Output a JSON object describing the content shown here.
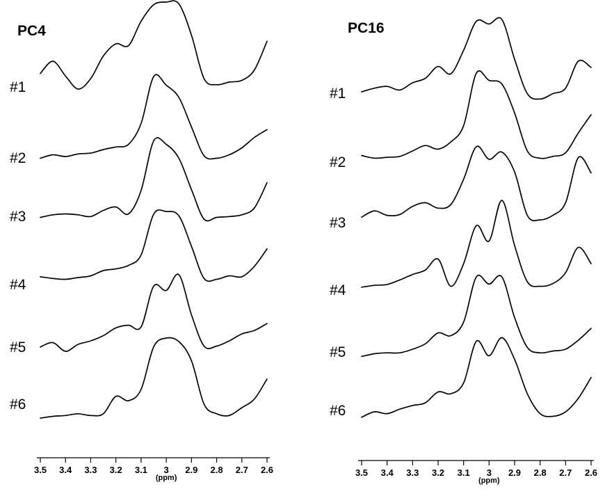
{
  "chart_data": [
    {
      "type": "line",
      "title": "PC4",
      "xlabel": "(ppm)",
      "x_reversed": true,
      "xlim": [
        3.5,
        2.6
      ],
      "xticks": [
        3.5,
        3.4,
        3.3,
        3.2,
        3.1,
        3.0,
        2.9,
        2.8,
        2.7,
        2.6
      ],
      "xtick_labels": [
        "3.5",
        "3.4",
        "3.3",
        "3.2",
        "3.1",
        "3",
        "2.9",
        "2.8",
        "2.7",
        "2.6"
      ],
      "x": [
        3.5,
        3.45,
        3.4,
        3.35,
        3.3,
        3.25,
        3.2,
        3.15,
        3.1,
        3.05,
        3.0,
        2.95,
        2.9,
        2.85,
        2.8,
        2.75,
        2.7,
        2.65,
        2.6
      ],
      "series": [
        {
          "name": "#1",
          "values": [
            0.18,
            0.32,
            0.15,
            0.0,
            0.12,
            0.38,
            0.52,
            0.5,
            0.78,
            0.97,
            1.0,
            0.98,
            0.62,
            0.12,
            0.05,
            0.08,
            0.1,
            0.22,
            0.55
          ]
        },
        {
          "name": "#2",
          "values": [
            0.02,
            0.06,
            0.04,
            0.07,
            0.08,
            0.12,
            0.15,
            0.18,
            0.42,
            0.96,
            0.86,
            0.72,
            0.38,
            0.05,
            0.02,
            0.06,
            0.14,
            0.26,
            0.35
          ]
        },
        {
          "name": "#3",
          "values": [
            0.02,
            0.05,
            0.06,
            0.05,
            0.03,
            0.1,
            0.14,
            0.06,
            0.33,
            0.9,
            0.86,
            0.7,
            0.34,
            0.0,
            0.02,
            0.03,
            0.05,
            0.13,
            0.42
          ]
        },
        {
          "name": "#4",
          "values": [
            0.05,
            0.03,
            0.02,
            0.04,
            0.06,
            0.12,
            0.14,
            0.18,
            0.3,
            0.77,
            0.8,
            0.75,
            0.4,
            0.03,
            0.02,
            0.06,
            0.05,
            0.17,
            0.37
          ]
        },
        {
          "name": "#5",
          "values": [
            0.05,
            0.1,
            0.0,
            0.08,
            0.12,
            0.18,
            0.27,
            0.3,
            0.28,
            0.75,
            0.7,
            0.88,
            0.42,
            0.06,
            0.06,
            0.12,
            0.2,
            0.24,
            0.32
          ]
        },
        {
          "name": "#6",
          "values": [
            0.0,
            0.02,
            0.03,
            0.05,
            0.03,
            0.05,
            0.25,
            0.2,
            0.33,
            0.82,
            0.92,
            0.88,
            0.66,
            0.16,
            0.05,
            0.03,
            0.12,
            0.22,
            0.45
          ]
        }
      ]
    },
    {
      "type": "line",
      "title": "PC16",
      "xlabel": "(ppm)",
      "x_reversed": true,
      "xlim": [
        3.5,
        2.6
      ],
      "xticks": [
        3.5,
        3.4,
        3.3,
        3.2,
        3.1,
        3.0,
        2.9,
        2.8,
        2.7,
        2.6
      ],
      "xtick_labels": [
        "3.5",
        "3.4",
        "3.3",
        "3.2",
        "3.1",
        "3",
        "2.9",
        "2.8",
        "2.7",
        "2.6"
      ],
      "x": [
        3.5,
        3.45,
        3.4,
        3.35,
        3.3,
        3.25,
        3.2,
        3.15,
        3.1,
        3.05,
        3.0,
        2.95,
        2.9,
        2.85,
        2.8,
        2.75,
        2.7,
        2.65,
        2.6
      ],
      "series": [
        {
          "name": "#1",
          "values": [
            0.1,
            0.14,
            0.16,
            0.12,
            0.2,
            0.25,
            0.38,
            0.3,
            0.56,
            0.88,
            0.85,
            0.9,
            0.46,
            0.08,
            0.02,
            0.08,
            0.14,
            0.44,
            0.37
          ]
        },
        {
          "name": "#2",
          "values": [
            0.05,
            0.02,
            0.03,
            0.04,
            0.1,
            0.16,
            0.12,
            0.2,
            0.38,
            0.96,
            0.88,
            0.84,
            0.52,
            0.1,
            0.02,
            0.04,
            0.08,
            0.3,
            0.5
          ]
        },
        {
          "name": "#3",
          "values": [
            0.06,
            0.13,
            0.08,
            0.09,
            0.18,
            0.22,
            0.16,
            0.2,
            0.48,
            0.84,
            0.7,
            0.78,
            0.56,
            0.08,
            0.03,
            0.08,
            0.22,
            0.72,
            0.55
          ]
        },
        {
          "name": "#4",
          "values": [
            0.04,
            0.06,
            0.07,
            0.12,
            0.18,
            0.23,
            0.35,
            0.05,
            0.3,
            0.72,
            0.55,
            1.0,
            0.5,
            0.1,
            0.05,
            0.08,
            0.2,
            0.48,
            0.3
          ]
        },
        {
          "name": "#5",
          "values": [
            0.02,
            0.05,
            0.06,
            0.06,
            0.1,
            0.16,
            0.28,
            0.25,
            0.4,
            0.9,
            0.82,
            0.9,
            0.45,
            0.12,
            0.06,
            0.08,
            0.1,
            0.2,
            0.33
          ]
        },
        {
          "name": "#6",
          "values": [
            0.04,
            0.1,
            0.08,
            0.13,
            0.17,
            0.2,
            0.32,
            0.3,
            0.42,
            0.88,
            0.72,
            0.92,
            0.68,
            0.3,
            0.08,
            0.05,
            0.1,
            0.25,
            0.48
          ]
        }
      ]
    }
  ]
}
